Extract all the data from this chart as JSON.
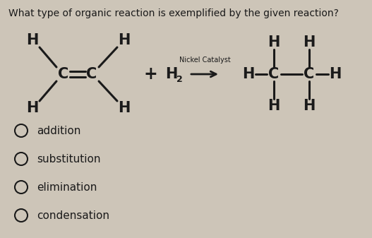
{
  "question": "What type of organic reaction is exemplified by the given reaction?",
  "question_fontsize": 10,
  "bg_color": "#cdc5b8",
  "text_color": "#1a1a1a",
  "choices": [
    "addition",
    "substitution",
    "elimination",
    "condensation"
  ],
  "choice_fontsize": 11,
  "reaction_fontsize": 15,
  "small_fontsize": 9,
  "catalyst_fontsize": 7,
  "catalyst_label": "Nickel Catalyst",
  "xlim": [
    0,
    527
  ],
  "ylim": [
    0,
    337
  ]
}
